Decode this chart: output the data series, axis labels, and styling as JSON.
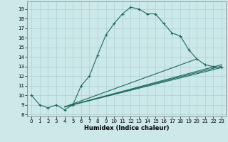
{
  "xlabel": "Humidex (Indice chaleur)",
  "ylabel": "",
  "background_color": "#cce8e8",
  "grid_color": "#afd4d4",
  "line_color": "#1a6b5a",
  "xlim": [
    -0.5,
    23.5
  ],
  "ylim": [
    7.8,
    19.8
  ],
  "xticks": [
    0,
    1,
    2,
    3,
    4,
    5,
    6,
    7,
    8,
    9,
    10,
    11,
    12,
    13,
    14,
    15,
    16,
    17,
    18,
    19,
    20,
    21,
    22,
    23
  ],
  "yticks": [
    8,
    9,
    10,
    11,
    12,
    13,
    14,
    15,
    16,
    17,
    18,
    19
  ],
  "main_line": {
    "x": [
      0,
      1,
      2,
      3,
      4,
      5,
      6,
      7,
      8,
      9,
      10,
      11,
      12,
      13,
      14,
      15,
      16,
      17,
      18,
      19,
      20,
      21,
      22,
      23
    ],
    "y": [
      10,
      9,
      8.7,
      9,
      8.5,
      9,
      11,
      12,
      14.2,
      16.3,
      17.5,
      18.5,
      19.2,
      19.0,
      18.5,
      18.5,
      17.5,
      16.5,
      16.2,
      14.8,
      13.8,
      13.2,
      13.0,
      12.9
    ]
  },
  "extra_lines": [
    {
      "x": [
        4,
        23
      ],
      "y": [
        8.8,
        12.9
      ]
    },
    {
      "x": [
        4,
        23
      ],
      "y": [
        8.8,
        13.05
      ]
    },
    {
      "x": [
        4,
        23
      ],
      "y": [
        8.8,
        13.2
      ]
    },
    {
      "x": [
        4,
        20
      ],
      "y": [
        8.8,
        13.8
      ]
    }
  ],
  "xlabel_fontsize": 6.0,
  "tick_fontsize": 5.0
}
